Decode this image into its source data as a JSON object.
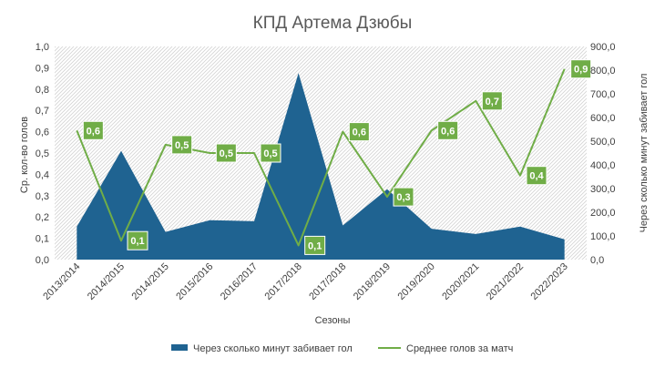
{
  "chart_data": {
    "type": "area",
    "title": "КПД Артема Дзюбы",
    "xlabel": "Сезоны",
    "ylabel": "Ср. кол-во голов",
    "y2label": "Через сколько минут забивает гол",
    "categories": [
      "2013/2014",
      "2014/2015",
      "2014/2015",
      "2015/2016",
      "2016/2017",
      "2017/2018",
      "2017/2018",
      "2018/2019",
      "2019/2020",
      "2020/2021",
      "2021/2022",
      "2022/2023"
    ],
    "y_ticks": [
      "0,0",
      "0,1",
      "0,2",
      "0,3",
      "0,4",
      "0,5",
      "0,6",
      "0,7",
      "0,8",
      "0,9",
      "1,0"
    ],
    "y2_ticks": [
      "0,0",
      "100,0",
      "200,0",
      "300,0",
      "400,0",
      "500,0",
      "600,0",
      "700,0",
      "800,0",
      "900,0"
    ],
    "ylim": [
      0,
      1.0
    ],
    "y2lim": [
      0,
      900
    ],
    "grid": false,
    "legend_position": "bottom",
    "series": [
      {
        "name": "Через сколько минут забивает гол",
        "type": "area",
        "axis": "left",
        "color": "#1f6391",
        "values": [
          0.155,
          0.51,
          0.13,
          0.185,
          0.18,
          0.875,
          0.16,
          0.33,
          0.145,
          0.12,
          0.155,
          0.095
        ]
      },
      {
        "name": "Среднее голов за матч",
        "type": "line",
        "axis": "right",
        "color": "#70ad47",
        "values": [
          545,
          80,
          485,
          450,
          450,
          60,
          540,
          265,
          545,
          670,
          355,
          805
        ],
        "labels": [
          "0,6",
          "0,1",
          "0,5",
          "0,5",
          "0,5",
          "0,1",
          "0,6",
          "0,3",
          "0,6",
          "0,7",
          "0,4",
          "0,9"
        ]
      }
    ]
  }
}
